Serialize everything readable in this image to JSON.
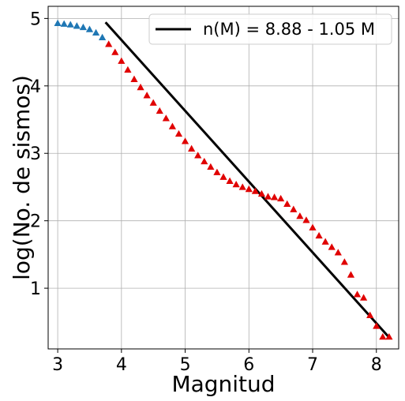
{
  "chart_data": {
    "type": "scatter",
    "xlabel": "Magnitud",
    "ylabel": "log(No. de sismos)",
    "xlim": [
      2.85,
      8.35
    ],
    "ylim": [
      0.1,
      5.18
    ],
    "xticks": [
      3,
      4,
      5,
      6,
      7,
      8
    ],
    "yticks": [
      1,
      2,
      3,
      4,
      5
    ],
    "grid": true,
    "legend_position": "top-right",
    "colors": {
      "blue": "#1f77b4",
      "red": "#e00000",
      "fit": "#000000"
    },
    "series": [
      {
        "marker": "triangle",
        "color": "#1f77b4",
        "x": [
          3.0,
          3.1,
          3.2,
          3.3,
          3.4,
          3.5,
          3.6,
          3.7
        ],
        "y": [
          4.93,
          4.92,
          4.91,
          4.89,
          4.87,
          4.84,
          4.79,
          4.72
        ]
      },
      {
        "marker": "triangle",
        "color": "#e00000",
        "x": [
          3.8,
          3.9,
          4.0,
          4.1,
          4.2,
          4.3,
          4.4,
          4.5,
          4.6,
          4.7,
          4.8,
          4.9,
          5.0,
          5.1,
          5.2,
          5.3,
          5.4,
          5.5,
          5.6,
          5.7,
          5.8,
          5.9,
          6.0,
          6.1,
          6.2,
          6.3,
          6.4,
          6.5,
          6.6,
          6.7,
          6.8,
          6.9,
          7.0,
          7.1,
          7.2,
          7.3,
          7.4,
          7.5,
          7.6,
          7.7,
          7.8,
          7.9,
          8.0,
          8.1,
          8.2
        ],
        "y": [
          4.62,
          4.5,
          4.37,
          4.24,
          4.1,
          3.98,
          3.86,
          3.75,
          3.63,
          3.52,
          3.4,
          3.29,
          3.18,
          3.07,
          2.97,
          2.88,
          2.8,
          2.72,
          2.65,
          2.59,
          2.54,
          2.5,
          2.47,
          2.44,
          2.4,
          2.36,
          2.35,
          2.33,
          2.25,
          2.17,
          2.07,
          2.01,
          1.9,
          1.78,
          1.69,
          1.61,
          1.53,
          1.39,
          1.2,
          0.91,
          0.86,
          0.6,
          0.44,
          0.28,
          0.28
        ]
      }
    ],
    "fit": {
      "label": "n(M) = 8.88 - 1.05 M",
      "intercept": 8.88,
      "slope": -1.05,
      "x_range": [
        3.75,
        8.2
      ]
    }
  }
}
